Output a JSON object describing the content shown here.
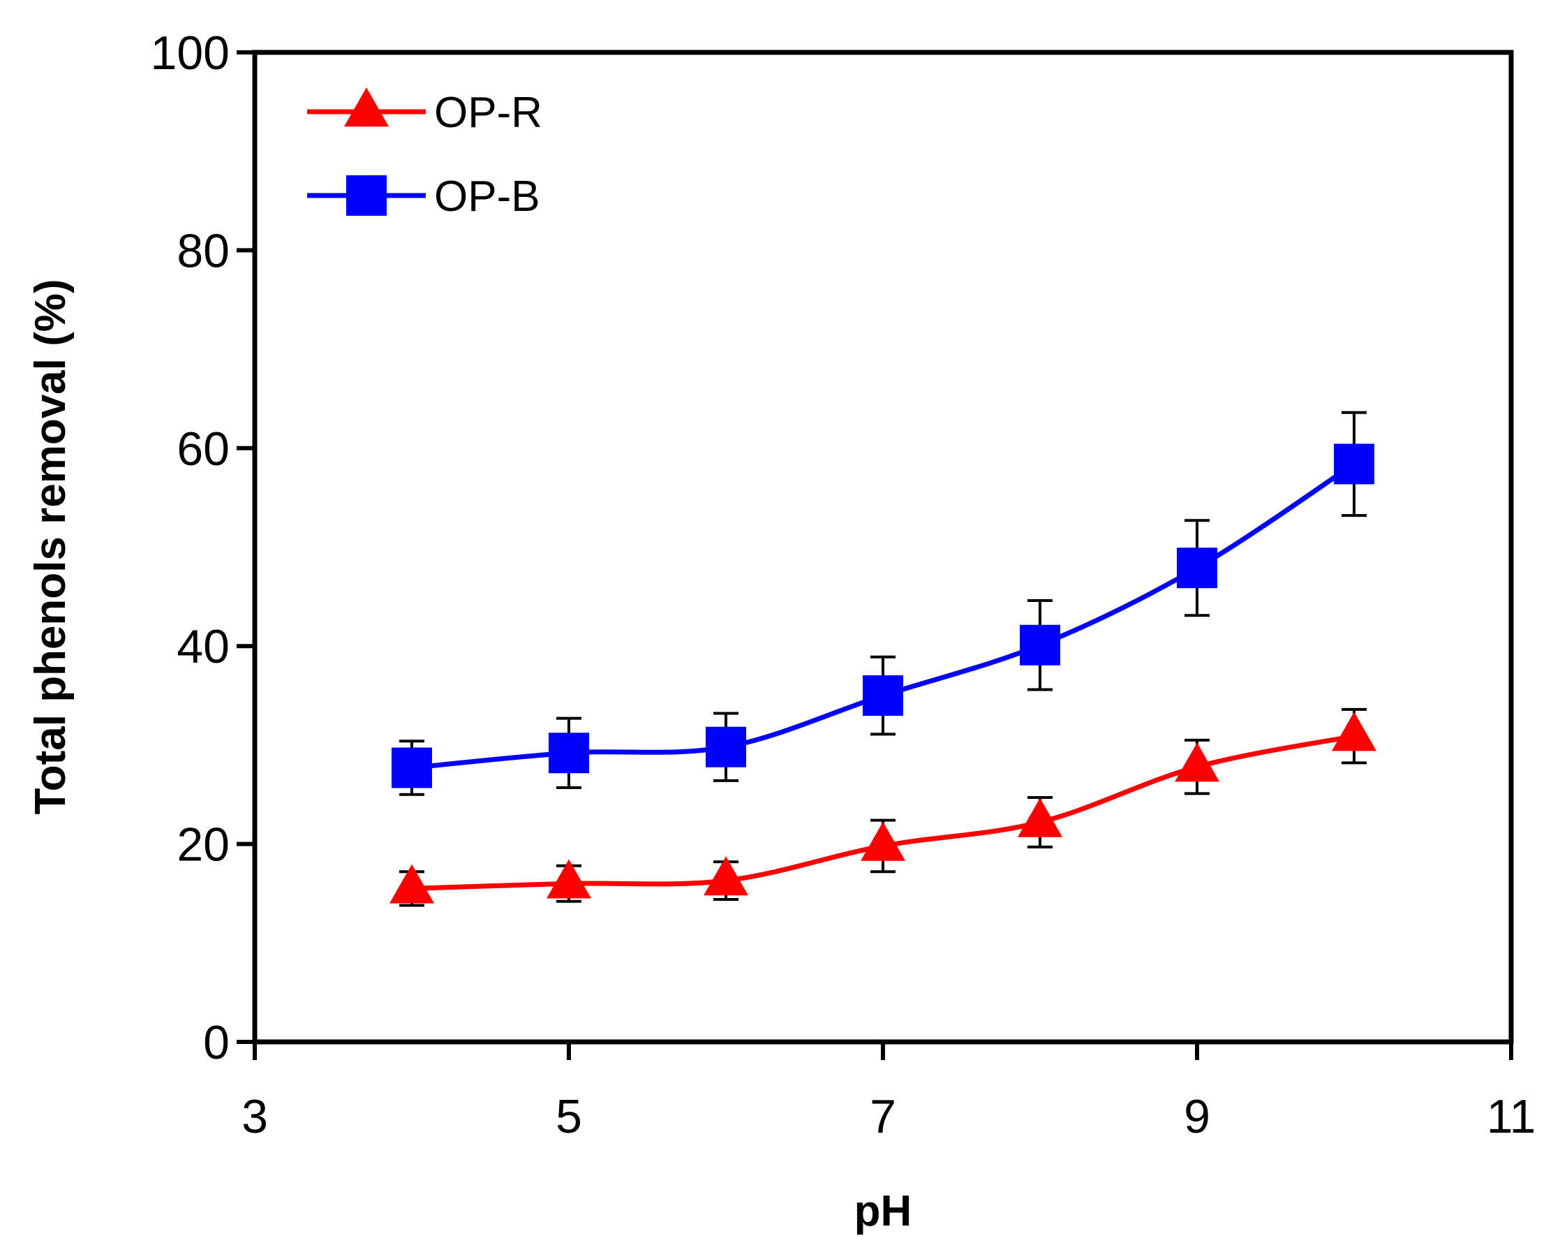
{
  "chart_data": {
    "type": "line",
    "title": "",
    "xlabel": "pH",
    "ylabel": "Total phenols removal (%)",
    "xlim": [
      3,
      11
    ],
    "ylim": [
      0,
      100
    ],
    "xticks": [
      3,
      5,
      7,
      9,
      11
    ],
    "yticks": [
      0,
      20,
      40,
      60,
      80,
      100
    ],
    "legend_position": "top-left",
    "grid": false,
    "series": [
      {
        "name": "OP-R",
        "color": "#ff0000",
        "marker": "triangle",
        "x": [
          4,
          5,
          6,
          7,
          8,
          9,
          10
        ],
        "y": [
          15.5,
          16.0,
          16.3,
          19.8,
          22.2,
          27.8,
          30.9
        ],
        "error": [
          1.7,
          1.8,
          1.9,
          2.6,
          2.5,
          2.7,
          2.7
        ]
      },
      {
        "name": "OP-B",
        "color": "#0000ff",
        "marker": "square",
        "x": [
          4,
          5,
          6,
          7,
          8,
          9,
          10
        ],
        "y": [
          27.7,
          29.2,
          29.8,
          35.0,
          40.1,
          47.9,
          58.4
        ],
        "error": [
          2.7,
          3.5,
          3.4,
          3.9,
          4.5,
          4.8,
          5.2
        ]
      }
    ]
  }
}
